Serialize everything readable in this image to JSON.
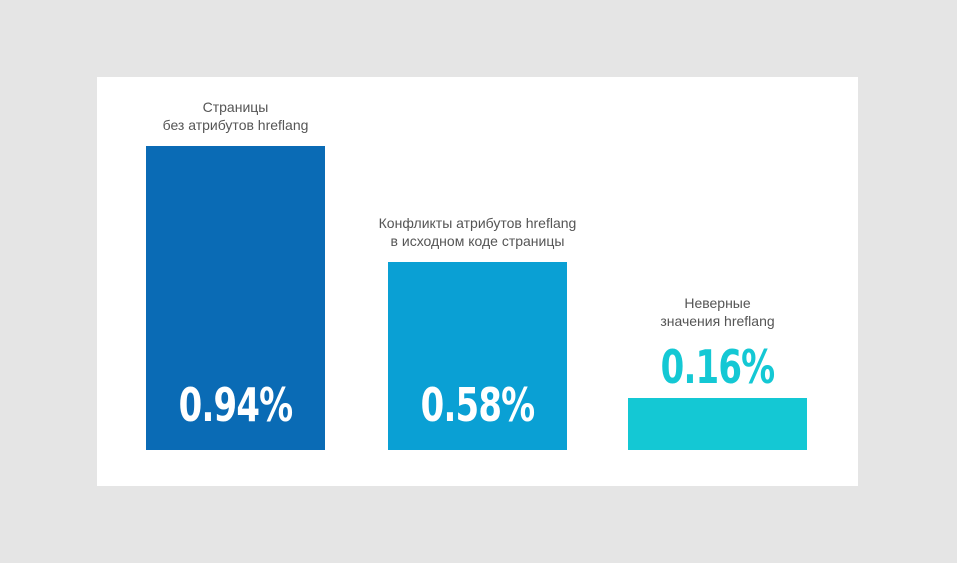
{
  "chart_data": {
    "type": "bar",
    "categories": [
      "Страницы\nбез атрибутов hreflang",
      "Конфликты атрибутов hreflang\nв исходном коде страницы",
      "Неверные\nзначения hreflang"
    ],
    "values": [
      0.94,
      0.58,
      0.16
    ],
    "value_labels": [
      "0.94%",
      "0.58%",
      "0.16%"
    ],
    "colors": [
      "#0a6bb5",
      "#0aa0d4",
      "#14c8d4"
    ]
  }
}
